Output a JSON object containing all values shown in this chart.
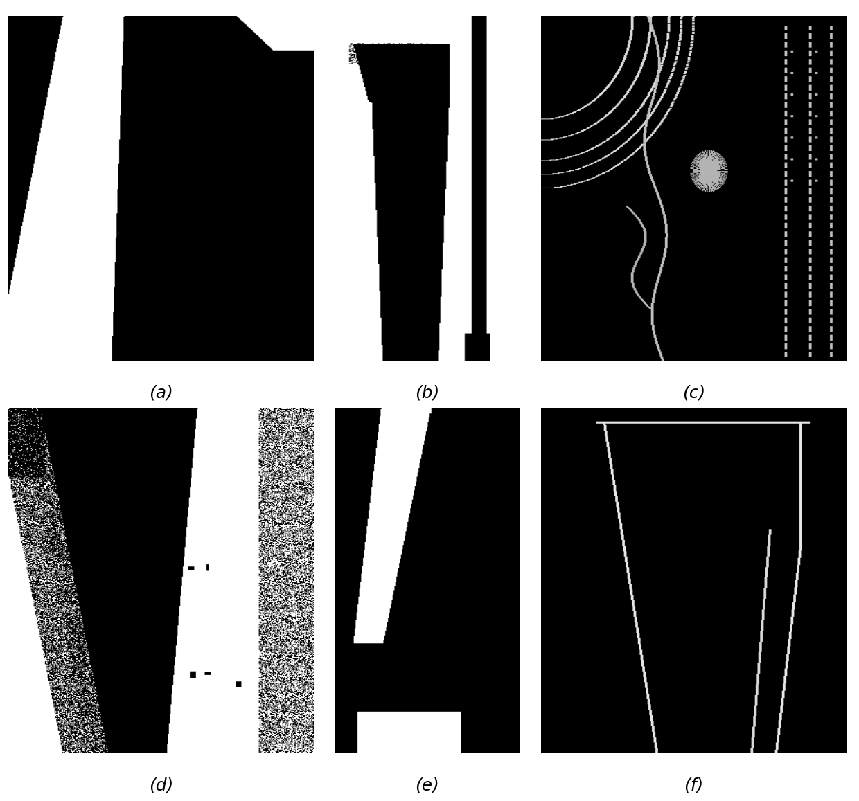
{
  "figure_width": 12.4,
  "figure_height": 11.57,
  "dpi": 100,
  "background_color": "#ffffff",
  "label_fontsize": 18,
  "labels": [
    "(a)",
    "(b)",
    "(c)",
    "(d)",
    "(e)",
    "(f)"
  ]
}
